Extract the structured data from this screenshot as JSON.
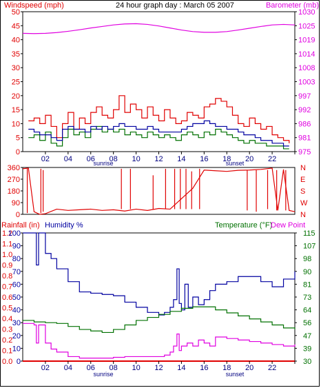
{
  "colors": {
    "wind_speed": "#e00000",
    "wind_avg": "#007000",
    "wind_dir": "#e00000",
    "barometer": "#e000e0",
    "rain": "#e00000",
    "humidity": "#0000a0",
    "temperature": "#007000",
    "dew_point": "#e000e0",
    "axis": "#000000"
  },
  "chart_data": [
    {
      "type": "line",
      "title": "24 hour graph day : March 05 2007",
      "left_axis_label": "Windspeed (mph)",
      "right_axis_label": "Barometer (mb)",
      "x_ticks": [
        "02",
        "04",
        "06",
        "08",
        "10",
        "12",
        "14",
        "16",
        "18",
        "20",
        "22",
        ""
      ],
      "sunrise_label": "sunrise",
      "sunset_label": "sunset",
      "left_ticks": [
        "0",
        "5",
        "10",
        "15",
        "20",
        "25",
        "30",
        "35",
        "40",
        "45",
        "50"
      ],
      "right_ticks": [
        "975",
        "981",
        "986",
        "992",
        "997",
        "1003",
        "1008",
        "1014",
        "1019",
        "1025",
        "1030"
      ],
      "ylim_left": [
        0,
        50
      ],
      "ylim_right": [
        975,
        1030
      ],
      "series": [
        {
          "key": "gust",
          "x": [
            0.5,
            1,
            1.5,
            2,
            2.5,
            3,
            3.5,
            4,
            4.5,
            5,
            5.5,
            6,
            6.5,
            7,
            7.5,
            8,
            8.5,
            9,
            9.5,
            10,
            10.5,
            11,
            11.5,
            12,
            12.5,
            13,
            13.5,
            14,
            14.5,
            15,
            15.5,
            16,
            16.5,
            17,
            17.5,
            18,
            18.5,
            19,
            19.5,
            20,
            20.5,
            21,
            21.5,
            22,
            22.5,
            23,
            23.5
          ],
          "values": [
            11,
            12,
            10,
            13,
            9,
            5,
            10,
            14,
            8,
            12,
            10,
            14,
            16,
            13,
            12,
            15,
            20,
            14,
            17,
            15,
            12,
            16,
            13,
            11,
            15,
            12,
            10,
            11,
            14,
            13,
            12,
            16,
            17,
            19,
            18,
            16,
            13,
            10,
            9,
            12,
            10,
            8,
            9,
            6,
            5,
            4,
            3
          ]
        },
        {
          "key": "avg",
          "x": [
            0.5,
            1,
            1.5,
            2,
            2.5,
            3,
            3.5,
            4,
            4.5,
            5,
            5.5,
            6,
            6.5,
            7,
            7.5,
            8,
            8.5,
            9,
            9.5,
            10,
            10.5,
            11,
            11.5,
            12,
            12.5,
            13,
            13.5,
            14,
            14.5,
            15,
            15.5,
            16,
            16.5,
            17,
            17.5,
            18,
            18.5,
            19,
            19.5,
            20,
            20.5,
            21,
            21.5,
            22,
            22.5,
            23,
            23.5
          ],
          "values": [
            5,
            6,
            4,
            7,
            3,
            2,
            5,
            8,
            6,
            7,
            5,
            8,
            9,
            7,
            8,
            7,
            8,
            6,
            7,
            6,
            5,
            7,
            6,
            5,
            6,
            5,
            4,
            6,
            7,
            6,
            5,
            7,
            6,
            8,
            7,
            6,
            5,
            4,
            3,
            4,
            3,
            3,
            2,
            2,
            2,
            1,
            1
          ]
        },
        {
          "key": "ten_min",
          "x": [
            0.5,
            1,
            1.5,
            2,
            2.5,
            3,
            3.5,
            4,
            4.5,
            5,
            5.5,
            6,
            6.5,
            7,
            7.5,
            8,
            8.5,
            9,
            9.5,
            10,
            10.5,
            11,
            11.5,
            12,
            12.5,
            13,
            13.5,
            14,
            14.5,
            15,
            15.5,
            16,
            16.5,
            17,
            17.5,
            18,
            18.5,
            19,
            19.5,
            20,
            20.5,
            21,
            21.5,
            22,
            22.5,
            23,
            23.5
          ],
          "values": [
            8,
            7,
            6,
            6,
            5,
            4,
            8,
            9,
            8,
            8,
            7,
            9,
            8,
            9,
            8,
            9,
            10,
            9,
            9,
            8,
            8,
            9,
            8,
            7,
            7,
            7,
            7,
            8,
            9,
            10,
            10,
            11,
            10,
            9,
            9,
            8,
            8,
            7,
            6,
            6,
            5,
            4,
            4,
            3,
            3,
            2,
            2
          ]
        },
        {
          "key": "barometer",
          "x": [
            0,
            1,
            2,
            3,
            4,
            5,
            6,
            7,
            8,
            9,
            10,
            11,
            12,
            13,
            14,
            15,
            16,
            17,
            18,
            19,
            20,
            21,
            22,
            23,
            24
          ],
          "values": [
            1021.5,
            1021.4,
            1021.5,
            1021.8,
            1022.3,
            1022.9,
            1023.6,
            1024.2,
            1024.8,
            1025.2,
            1025.3,
            1025.0,
            1024.4,
            1023.6,
            1022.8,
            1022.2,
            1021.9,
            1021.9,
            1022.2,
            1022.8,
            1023.5,
            1024.2,
            1024.8,
            1025.0,
            1024.8
          ]
        }
      ]
    },
    {
      "type": "line",
      "left_ticks": [
        "0",
        "90",
        "180",
        "270",
        "360"
      ],
      "right_ticks": [
        "N",
        "W",
        "S",
        "E",
        "N"
      ],
      "ylim": [
        0,
        360
      ],
      "series": [
        {
          "key": "direction",
          "x": [
            0,
            0.5,
            1,
            1.5,
            2,
            3,
            4,
            5,
            6,
            7,
            8,
            9,
            10,
            11,
            12,
            13,
            14,
            15,
            16,
            17,
            18,
            19,
            20,
            21,
            22,
            22.5,
            23,
            23.5,
            24
          ],
          "values": [
            350,
            355,
            20,
            0,
            5,
            40,
            30,
            35,
            40,
            30,
            35,
            25,
            40,
            30,
            45,
            40,
            120,
            200,
            340,
            335,
            330,
            338,
            340,
            345,
            355,
            30,
            345,
            30,
            20
          ]
        }
      ],
      "spikes": [
        {
          "x": 0.4,
          "from": 350,
          "to": 10
        },
        {
          "x": 1.6,
          "from": 10,
          "to": 350
        },
        {
          "x": 1.8,
          "from": 340,
          "to": 20
        },
        {
          "x": 8.7,
          "from": 40,
          "to": 350
        },
        {
          "x": 9.5,
          "from": 40,
          "to": 350
        },
        {
          "x": 11.5,
          "from": 40,
          "to": 300
        },
        {
          "x": 12.6,
          "from": 40,
          "to": 350
        },
        {
          "x": 13.4,
          "from": 40,
          "to": 350
        },
        {
          "x": 13.9,
          "from": 40,
          "to": 350
        },
        {
          "x": 14.4,
          "from": 40,
          "to": 350
        },
        {
          "x": 14.9,
          "from": 40,
          "to": 330
        },
        {
          "x": 15.6,
          "from": 40,
          "to": 350
        },
        {
          "x": 19.8,
          "from": 340,
          "to": 30
        },
        {
          "x": 20.6,
          "from": 340,
          "to": 20
        },
        {
          "x": 21.6,
          "from": 340,
          "to": 40
        },
        {
          "x": 22.4,
          "from": 340,
          "to": 30
        },
        {
          "x": 23.2,
          "from": 340,
          "to": 30
        }
      ]
    },
    {
      "type": "line",
      "left_label_1": "Rainfall (in)",
      "left_label_2": "Humidity %",
      "right_label_1": "Temperature (°F)",
      "right_label_2": "Dew Point",
      "x_ticks": [
        "02",
        "04",
        "06",
        "08",
        "10",
        "12",
        "14",
        "16",
        "18",
        "20",
        "22",
        ""
      ],
      "sunrise_label": "sunrise",
      "sunset_label": "sunset",
      "rain_ticks": [
        "0.0",
        "0.1",
        "0.2",
        "0.3",
        "0.4",
        "0.5",
        "0.6",
        "0.7",
        "0.8",
        "0.9",
        "1.0",
        "1.1",
        "1.2"
      ],
      "humidity_ticks": [
        "0",
        "10",
        "20",
        "30",
        "40",
        "50",
        "60",
        "70",
        "80",
        "90",
        "100"
      ],
      "temp_ticks": [
        "30",
        "39",
        "47",
        "56",
        "64",
        "73",
        "81",
        "90",
        "98",
        "107",
        "115"
      ],
      "ylim_humidity": [
        0,
        100
      ],
      "ylim_temp": [
        30,
        115
      ],
      "series": [
        {
          "key": "humidity",
          "x": [
            0,
            1,
            1.2,
            1.4,
            1.6,
            2,
            2.5,
            3,
            4,
            5,
            6,
            7,
            8,
            9,
            10,
            11,
            12,
            12.5,
            13,
            13.3,
            13.6,
            13.8,
            14,
            14.3,
            14.6,
            15,
            15.5,
            16,
            16.5,
            17,
            18,
            19,
            20,
            21,
            22,
            23,
            24
          ],
          "values": [
            100,
            100,
            75,
            100,
            100,
            84,
            80,
            72,
            62,
            54,
            53,
            52,
            51,
            46,
            42,
            38,
            36,
            38,
            42,
            48,
            72,
            45,
            40,
            60,
            42,
            50,
            44,
            48,
            55,
            60,
            62,
            66,
            66,
            62,
            58,
            64,
            70
          ]
        },
        {
          "key": "temperature",
          "x": [
            0,
            1,
            2,
            3,
            4,
            5,
            6,
            7,
            8,
            9,
            10,
            11,
            12,
            13,
            14,
            15,
            16,
            17,
            18,
            19,
            20,
            21,
            22,
            23,
            24
          ],
          "values": [
            57,
            56,
            55.5,
            55,
            53,
            51,
            50,
            49,
            51,
            54,
            57,
            59,
            61,
            63,
            65,
            66,
            66,
            64,
            62,
            60,
            58,
            56,
            54,
            52,
            51
          ]
        },
        {
          "key": "dew_point",
          "x": [
            0,
            1,
            1.2,
            1.4,
            1.6,
            2,
            2.5,
            3,
            4,
            5,
            6,
            7,
            8,
            9,
            10,
            11,
            12,
            12.5,
            13,
            13.3,
            13.6,
            13.8,
            14,
            14.5,
            15,
            15.5,
            16,
            16.5,
            17,
            18,
            19,
            20,
            21,
            22,
            23,
            24
          ],
          "values": [
            55,
            54,
            42,
            54,
            54,
            42,
            38,
            36,
            33,
            32,
            32,
            32,
            32.5,
            33,
            33,
            33,
            33,
            34,
            36,
            40,
            48,
            37,
            40,
            42,
            40,
            44,
            42,
            40,
            46,
            45,
            44,
            43,
            42,
            41,
            40,
            41
          ]
        },
        {
          "key": "rain",
          "x": [
            0,
            24
          ],
          "values": [
            0,
            0
          ]
        }
      ]
    }
  ]
}
